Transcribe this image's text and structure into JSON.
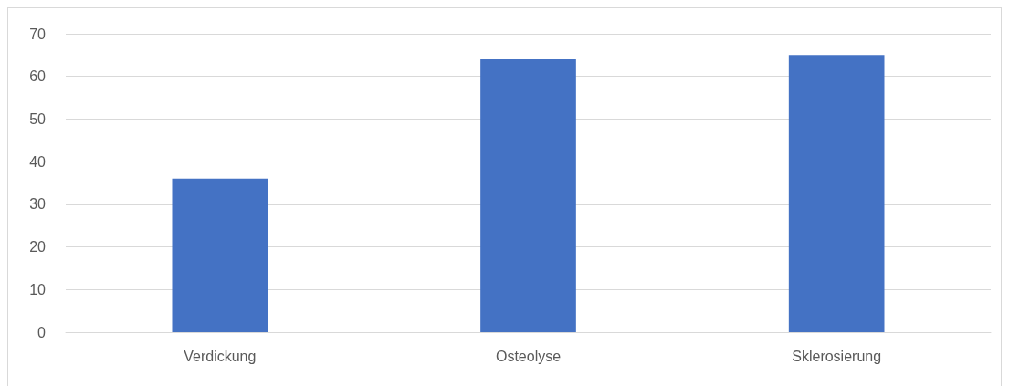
{
  "chart_data": {
    "type": "bar",
    "categories": [
      "Verdickung",
      "Osteolyse",
      "Sklerosierung"
    ],
    "values": [
      36,
      64,
      65
    ],
    "color": "#4472c4",
    "ylim": [
      0,
      70
    ],
    "yticks": [
      0,
      10,
      20,
      30,
      40,
      50,
      60,
      70
    ],
    "grid": "y"
  }
}
